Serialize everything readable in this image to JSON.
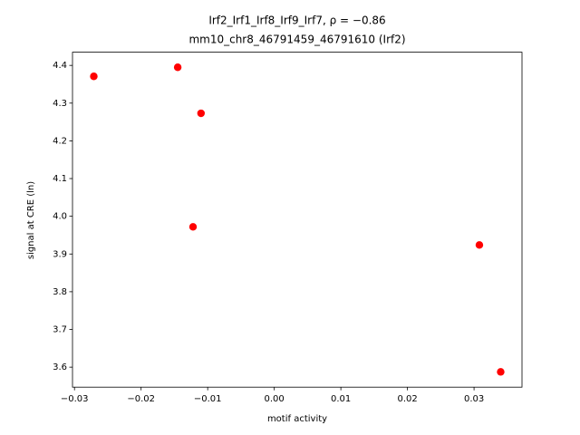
{
  "chart_data": {
    "type": "scatter",
    "title": "Irf2_Irf1_Irf8_Irf9_Irf7, ρ = −0.86",
    "subtitle": "mm10_chr8_46791459_46791610 (Irf2)",
    "x_label": "motif activity",
    "y_label": "signal at CRE (ln)",
    "color": "#ff0000",
    "x": [
      -0.0271,
      -0.0145,
      -0.011,
      -0.0122,
      0.0308,
      0.034
    ],
    "values": [
      4.371,
      4.395,
      4.273,
      3.972,
      3.924,
      3.5875
    ],
    "xlim": [
      -0.0303,
      0.0372
    ],
    "ylim": [
      3.547,
      4.435
    ],
    "xticks": [
      {
        "value": -0.03,
        "label": "−0.03"
      },
      {
        "value": -0.02,
        "label": "−0.02"
      },
      {
        "value": -0.01,
        "label": "−0.01"
      },
      {
        "value": 0,
        "label": "0.00"
      },
      {
        "value": 0.01,
        "label": "0.01"
      },
      {
        "value": 0.02,
        "label": "0.02"
      },
      {
        "value": 0.03,
        "label": "0.03"
      }
    ],
    "yticks": [
      3.6,
      3.7,
      3.8,
      3.9,
      {
        "value": 4,
        "label": "4.0"
      },
      4.1,
      4.2,
      4.3,
      4.4
    ],
    "grid": false
  }
}
